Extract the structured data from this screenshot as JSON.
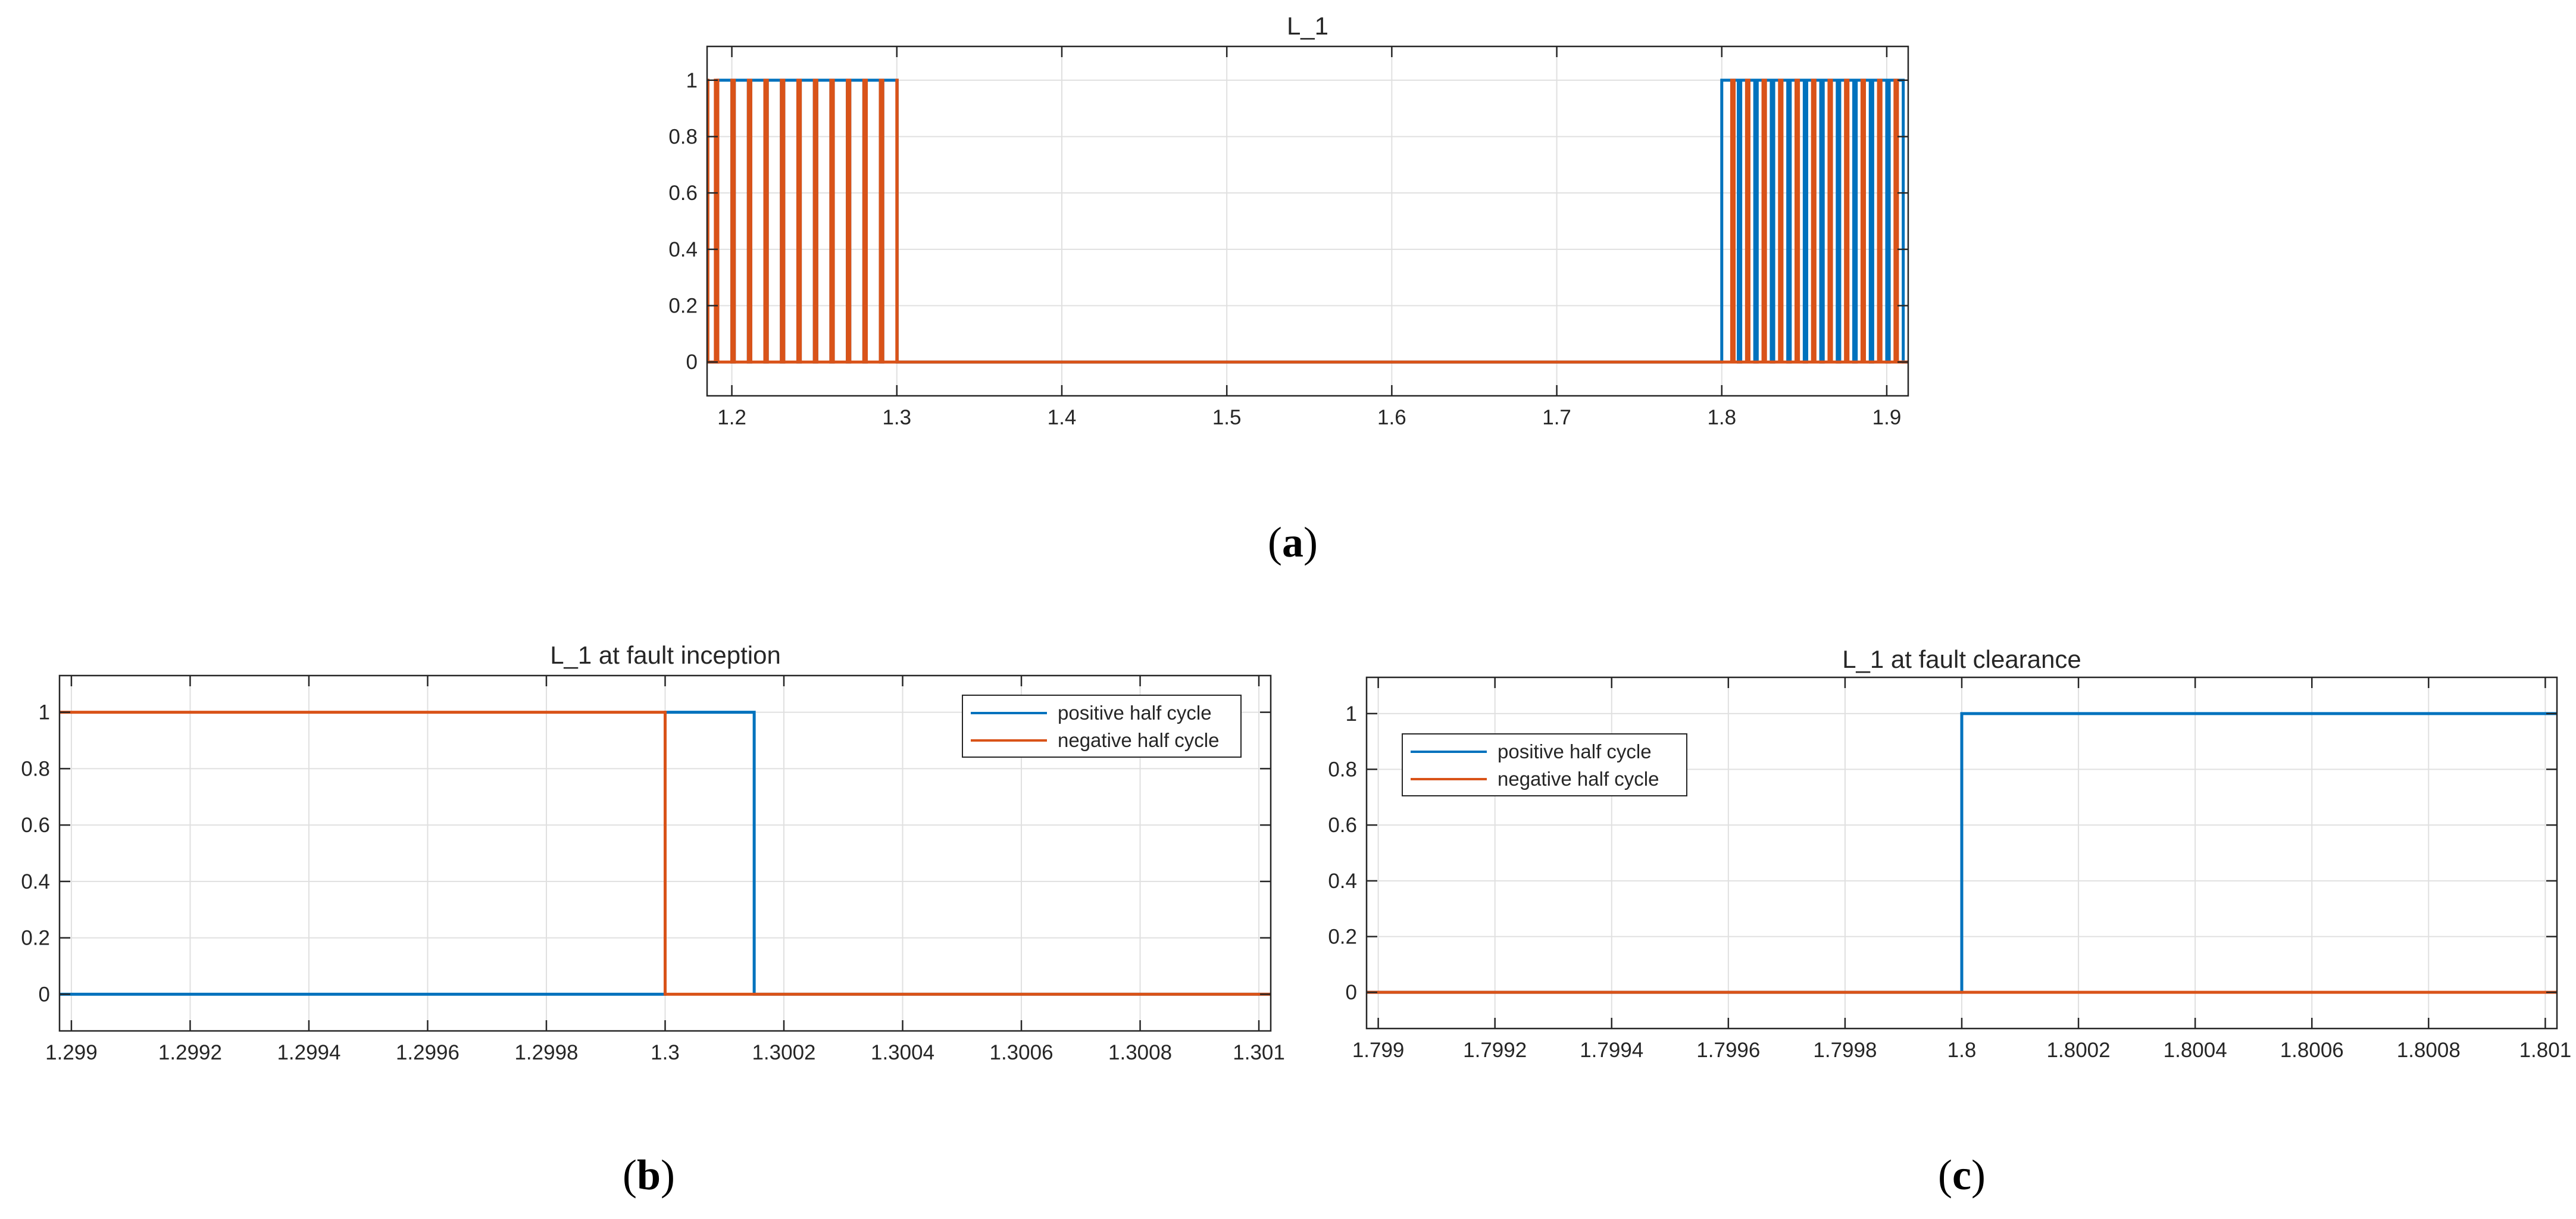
{
  "colors": {
    "positive": "#0072bd",
    "negative": "#d95319"
  },
  "panels": [
    {
      "letter": "a"
    },
    {
      "letter": "b"
    },
    {
      "letter": "c"
    }
  ],
  "chart_data": [
    {
      "id": "a",
      "type": "line",
      "title": "L_1",
      "xlabel": "",
      "ylabel": "",
      "xlim": [
        1.185,
        1.913
      ],
      "ylim": [
        -0.12,
        1.12
      ],
      "xticks": [
        1.2,
        1.3,
        1.4,
        1.5,
        1.6,
        1.7,
        1.8,
        1.9
      ],
      "xtick_labels": [
        "1.2",
        "1.3",
        "1.4",
        "1.5",
        "1.6",
        "1.7",
        "1.8",
        "1.9"
      ],
      "yticks": [
        0,
        0.2,
        0.4,
        0.6,
        0.8,
        1
      ],
      "ytick_labels": [
        "0",
        "0.2",
        "0.4",
        "0.6",
        "0.8",
        "1"
      ],
      "grid": true,
      "legend": null,
      "series": [
        {
          "name": "positive half cycle",
          "color_key": "positive",
          "steps": [
            [
              1.185,
              0
            ],
            [
              1.1915,
              1
            ],
            [
              1.2,
              0
            ],
            [
              1.2015,
              1
            ],
            [
              1.21,
              0
            ],
            [
              1.2115,
              1
            ],
            [
              1.22,
              0
            ],
            [
              1.2215,
              1
            ],
            [
              1.23,
              0
            ],
            [
              1.2315,
              1
            ],
            [
              1.24,
              0
            ],
            [
              1.2415,
              1
            ],
            [
              1.25,
              0
            ],
            [
              1.2515,
              1
            ],
            [
              1.26,
              0
            ],
            [
              1.2615,
              1
            ],
            [
              1.27,
              0
            ],
            [
              1.2715,
              1
            ],
            [
              1.28,
              0
            ],
            [
              1.2815,
              1
            ],
            [
              1.29,
              0
            ],
            [
              1.2915,
              1
            ],
            [
              1.3002,
              0
            ],
            [
              1.8,
              1
            ],
            [
              1.81,
              0
            ],
            [
              1.8115,
              1
            ],
            [
              1.82,
              0
            ],
            [
              1.8215,
              1
            ],
            [
              1.83,
              0
            ],
            [
              1.8315,
              1
            ],
            [
              1.84,
              0
            ],
            [
              1.8415,
              1
            ],
            [
              1.85,
              0
            ],
            [
              1.8515,
              1
            ],
            [
              1.86,
              0
            ],
            [
              1.8615,
              1
            ],
            [
              1.87,
              0
            ],
            [
              1.8715,
              1
            ],
            [
              1.88,
              0
            ],
            [
              1.8815,
              1
            ],
            [
              1.89,
              0
            ],
            [
              1.8915,
              1
            ],
            [
              1.9,
              0
            ],
            [
              1.9015,
              1
            ],
            [
              1.91,
              0
            ],
            [
              1.913,
              0
            ]
          ]
        },
        {
          "name": "negative half cycle",
          "color_key": "negative",
          "steps": [
            [
              1.185,
              1
            ],
            [
              1.1855,
              0
            ],
            [
              1.19,
              1
            ],
            [
              1.1915,
              0
            ],
            [
              1.2,
              1
            ],
            [
              1.2015,
              0
            ],
            [
              1.21,
              1
            ],
            [
              1.2115,
              0
            ],
            [
              1.22,
              1
            ],
            [
              1.2215,
              0
            ],
            [
              1.23,
              1
            ],
            [
              1.2315,
              0
            ],
            [
              1.24,
              1
            ],
            [
              1.2415,
              0
            ],
            [
              1.25,
              1
            ],
            [
              1.2515,
              0
            ],
            [
              1.26,
              1
            ],
            [
              1.2615,
              0
            ],
            [
              1.27,
              1
            ],
            [
              1.2715,
              0
            ],
            [
              1.28,
              1
            ],
            [
              1.2815,
              0
            ],
            [
              1.29,
              1
            ],
            [
              1.2915,
              0
            ],
            [
              1.3,
              1
            ],
            [
              1.3002,
              0
            ],
            [
              1.805,
              0
            ],
            [
              1.806,
              1
            ],
            [
              1.8075,
              0
            ],
            [
              1.815,
              1
            ],
            [
              1.8165,
              0
            ],
            [
              1.825,
              1
            ],
            [
              1.8265,
              0
            ],
            [
              1.835,
              1
            ],
            [
              1.8365,
              0
            ],
            [
              1.845,
              1
            ],
            [
              1.8465,
              0
            ],
            [
              1.855,
              1
            ],
            [
              1.8565,
              0
            ],
            [
              1.865,
              1
            ],
            [
              1.8665,
              0
            ],
            [
              1.875,
              1
            ],
            [
              1.8765,
              0
            ],
            [
              1.885,
              1
            ],
            [
              1.8865,
              0
            ],
            [
              1.895,
              1
            ],
            [
              1.8965,
              0
            ],
            [
              1.905,
              1
            ],
            [
              1.9065,
              0
            ],
            [
              1.913,
              0
            ]
          ]
        }
      ]
    },
    {
      "id": "b",
      "type": "line",
      "title": "L_1 at fault inception",
      "xlabel": "",
      "ylabel": "",
      "xlim": [
        1.29898,
        1.30102
      ],
      "ylim": [
        -0.13,
        1.13
      ],
      "xticks": [
        1.299,
        1.2992,
        1.2994,
        1.2996,
        1.2998,
        1.3,
        1.3002,
        1.3004,
        1.3006,
        1.3008,
        1.301
      ],
      "xtick_labels": [
        "1.299",
        "1.2992",
        "1.2994",
        "1.2996",
        "1.2998",
        "1.3",
        "1.3002",
        "1.3004",
        "1.3006",
        "1.3008",
        "1.301"
      ],
      "yticks": [
        0,
        0.2,
        0.4,
        0.6,
        0.8,
        1
      ],
      "ytick_labels": [
        "0",
        "0.2",
        "0.4",
        "0.6",
        "0.8",
        "1"
      ],
      "grid": true,
      "legend": {
        "position": "top-right",
        "entries": [
          "positive half cycle",
          "negative half cycle"
        ]
      },
      "series": [
        {
          "name": "positive half cycle",
          "color_key": "positive",
          "steps": [
            [
              1.29898,
              0
            ],
            [
              1.3,
              1
            ],
            [
              1.30015,
              0
            ],
            [
              1.30102,
              0
            ]
          ]
        },
        {
          "name": "negative half cycle",
          "color_key": "negative",
          "steps": [
            [
              1.29898,
              1
            ],
            [
              1.3,
              0
            ],
            [
              1.30102,
              0
            ]
          ]
        }
      ]
    },
    {
      "id": "c",
      "type": "line",
      "title": "L_1 at fault clearance",
      "xlabel": "",
      "ylabel": "",
      "xlim": [
        1.79898,
        1.80102
      ],
      "ylim": [
        -0.13,
        1.13
      ],
      "xticks": [
        1.799,
        1.7992,
        1.7994,
        1.7996,
        1.7998,
        1.8,
        1.8002,
        1.8004,
        1.8006,
        1.8008,
        1.801
      ],
      "xtick_labels": [
        "1.799",
        "1.7992",
        "1.7994",
        "1.7996",
        "1.7998",
        "1.8",
        "1.8002",
        "1.8004",
        "1.8006",
        "1.8008",
        "1.801"
      ],
      "yticks": [
        0,
        0.2,
        0.4,
        0.6,
        0.8,
        1
      ],
      "ytick_labels": [
        "0",
        "0.2",
        "0.4",
        "0.6",
        "0.8",
        "1"
      ],
      "grid": true,
      "legend": {
        "position": "top-left",
        "entries": [
          "positive half cycle",
          "negative half cycle"
        ]
      },
      "series": [
        {
          "name": "positive half cycle",
          "color_key": "positive",
          "steps": [
            [
              1.79898,
              0
            ],
            [
              1.8,
              1
            ],
            [
              1.80102,
              1
            ]
          ]
        },
        {
          "name": "negative half cycle",
          "color_key": "negative",
          "steps": [
            [
              1.79898,
              0
            ],
            [
              1.80102,
              0
            ]
          ]
        }
      ]
    }
  ]
}
